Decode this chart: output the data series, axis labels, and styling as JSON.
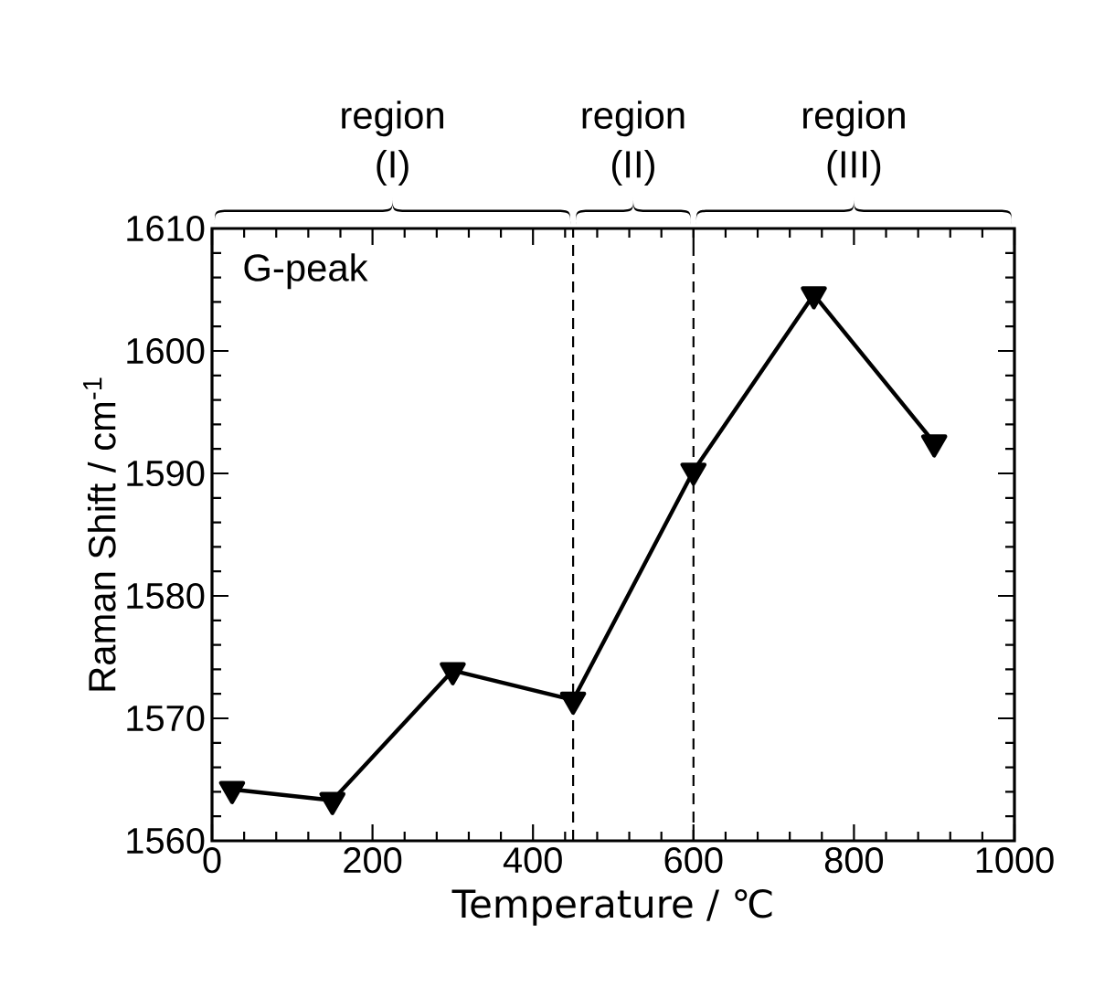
{
  "chart_data": {
    "type": "line",
    "xlabel": "Temperature / ℃",
    "ylabel": "Raman Shift / cm$^{-1}$",
    "x": [
      25,
      150,
      300,
      450,
      600,
      750,
      900
    ],
    "series": [
      {
        "color": "#000000",
        "values": [
          1564.2,
          1563.3,
          1573.9,
          1571.5,
          1590.2,
          1604.6,
          1592.5
        ]
      }
    ],
    "xlim": [
      0,
      1000
    ],
    "xticks": [
      0,
      200,
      400,
      600,
      800,
      1000
    ],
    "ylim": [
      1560,
      1610
    ],
    "yticks": [
      1560,
      1570,
      1580,
      1590,
      1600,
      1610
    ],
    "marker": "triangle",
    "line_style": "solid",
    "grid": false,
    "annotations": [
      "G-peak",
      "region (I)",
      "region (II)",
      "region (III)"
    ],
    "ref_lines": [
      {
        "axis": "x",
        "value": 450,
        "line_style": "dashed"
      },
      {
        "axis": "x",
        "value": 600,
        "line_style": "dashed"
      }
    ]
  }
}
